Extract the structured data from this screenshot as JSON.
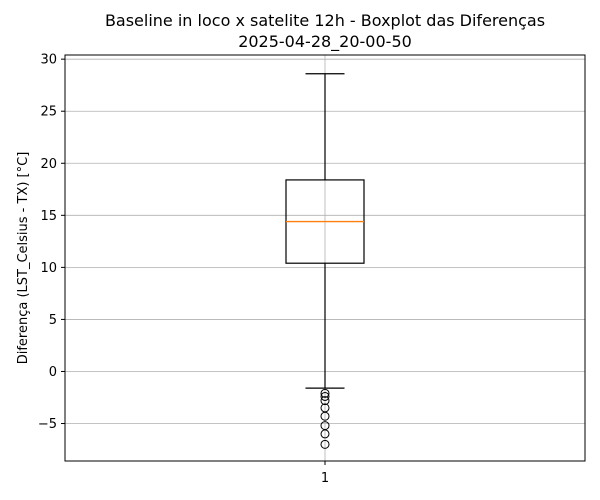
{
  "chart_data": {
    "type": "boxplot",
    "title": "Baseline in loco x satelite 12h - Boxplot das Diferenças",
    "subtitle": "2025-04-28_20-00-50",
    "xlabel": "",
    "ylabel": "Diferença (LST_Celsius - TX) [°C]",
    "categories": [
      "1"
    ],
    "ylim": [
      -8.6,
      30.4
    ],
    "yticks": [
      -5,
      0,
      5,
      10,
      15,
      20,
      25,
      30
    ],
    "ytick_labels": [
      "−5",
      "0",
      "5",
      "10",
      "15",
      "20",
      "25",
      "30"
    ],
    "grid": true,
    "boxes": [
      {
        "category": "1",
        "whisker_low": -1.6,
        "q1": 10.4,
        "median": 14.4,
        "q3": 18.4,
        "whisker_high": 28.6,
        "outliers": [
          -2.1,
          -2.4,
          -2.8,
          -3.5,
          -4.3,
          -5.2,
          -6.0,
          -7.0
        ]
      }
    ],
    "colors": {
      "box": "#000000",
      "median": "#ff7f0e",
      "grid": "#b0b0b0"
    }
  }
}
